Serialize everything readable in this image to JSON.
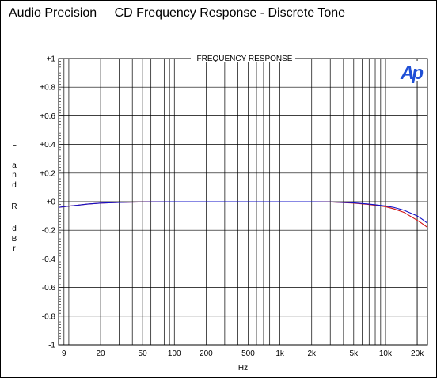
{
  "header": {
    "brand": "Audio Precision",
    "title": "CD Frequency Response - Discrete Tone"
  },
  "logo": {
    "text": "Ap",
    "color": "#1f4fd6"
  },
  "colors": {
    "series_blue": "#1010c8",
    "series_red": "#d01010",
    "grid": "#000000"
  },
  "ylabel_chars": [
    "L",
    "",
    "a",
    "n",
    "d",
    "",
    "R",
    "",
    "d",
    "B",
    "r"
  ],
  "chart_data": {
    "type": "line",
    "title": "FREQUENCY RESPONSE",
    "xlabel": "Hz",
    "ylabel": "L and R dBr",
    "xscale": "log",
    "xlim": [
      8,
      25000
    ],
    "ylim": [
      -1,
      1
    ],
    "grid": true,
    "xticks": [
      9,
      20,
      50,
      100,
      200,
      500,
      1000,
      2000,
      5000,
      10000,
      20000
    ],
    "xtick_labels": [
      "9",
      "20",
      "50",
      "100",
      "200",
      "500",
      "1k",
      "2k",
      "5k",
      "10k",
      "20k"
    ],
    "yticks": [
      1,
      0.8,
      0.6,
      0.4,
      0.2,
      0,
      -0.2,
      -0.4,
      -0.6,
      -0.8,
      -1
    ],
    "ytick_labels": [
      "+1",
      "+0.8",
      "+0.6",
      "+0.4",
      "+0.2",
      "+0",
      "-0.2",
      "-0.4",
      "-0.6",
      "-0.8",
      "-1"
    ],
    "series": [
      {
        "color": "#d01010",
        "x": [
          8,
          9,
          12,
          15,
          20,
          30,
          40,
          60,
          100,
          1000,
          2000,
          3000,
          5000,
          7000,
          10000,
          12000,
          15000,
          18000,
          20000,
          22000,
          25000
        ],
        "y": [
          -0.04,
          -0.035,
          -0.025,
          -0.017,
          -0.01,
          -0.005,
          -0.003,
          -0.001,
          0,
          0,
          0,
          -0.002,
          -0.01,
          -0.02,
          -0.035,
          -0.05,
          -0.075,
          -0.11,
          -0.13,
          -0.15,
          -0.18
        ]
      },
      {
        "color": "#1010c8",
        "x": [
          8,
          9,
          12,
          15,
          20,
          30,
          40,
          60,
          100,
          1000,
          2000,
          3000,
          5000,
          7000,
          10000,
          12000,
          15000,
          18000,
          20000,
          22000,
          25000
        ],
        "y": [
          -0.04,
          -0.035,
          -0.025,
          -0.017,
          -0.01,
          -0.005,
          -0.003,
          -0.001,
          0,
          0,
          0,
          -0.002,
          -0.008,
          -0.017,
          -0.03,
          -0.04,
          -0.06,
          -0.085,
          -0.1,
          -0.12,
          -0.15
        ]
      }
    ]
  }
}
